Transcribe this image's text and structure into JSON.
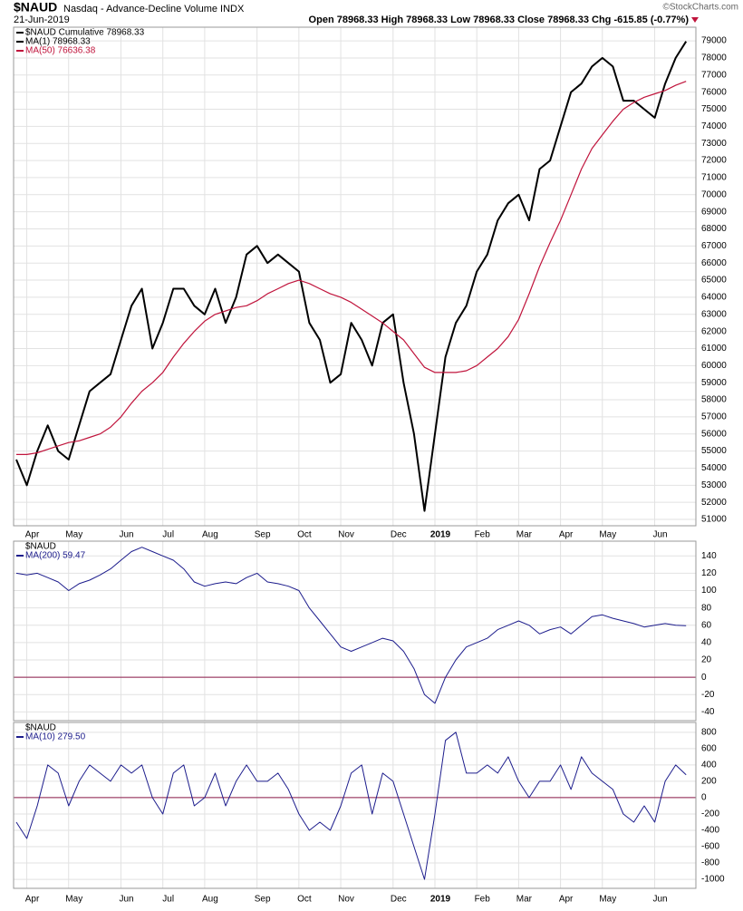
{
  "header": {
    "symbol": "$NAUD",
    "description": "Nasdaq - Advance-Decline Volume INDX",
    "date": "21-Jun-2019",
    "quote": "Open 78968.33  High 78968.33  Low 78968.33  Close 78968.33  Chg -615.85 (-0.77%)",
    "copyright": "©StockCharts.com"
  },
  "chart_data": [
    {
      "type": "line",
      "categories": [
        null,
        "Apr",
        null,
        null,
        null,
        "May",
        null,
        null,
        null,
        null,
        "Jun",
        null,
        null,
        null,
        "Jul",
        null,
        null,
        null,
        "Aug",
        null,
        null,
        null,
        null,
        "Sep",
        null,
        null,
        null,
        "Oct",
        null,
        null,
        null,
        "Nov",
        null,
        null,
        null,
        null,
        "Dec",
        null,
        null,
        null,
        "2019",
        null,
        null,
        null,
        "Feb",
        null,
        null,
        null,
        "Mar",
        null,
        null,
        null,
        "Apr",
        null,
        null,
        null,
        "May",
        null,
        null,
        null,
        null,
        "Jun",
        null,
        null,
        null
      ],
      "extra_legend": "MA(1) 78968.33",
      "series": [
        {
          "name": "$NAUD Cumulative 78968.33",
          "color": "#000000",
          "width": 2,
          "values": [
            54500,
            53000,
            55000,
            56500,
            55000,
            54500,
            56500,
            58500,
            59000,
            59500,
            61500,
            63500,
            64500,
            61000,
            62500,
            64500,
            64500,
            63500,
            63000,
            64500,
            62500,
            64000,
            66500,
            67000,
            66000,
            66500,
            66000,
            65500,
            62500,
            61500,
            59000,
            59500,
            62500,
            61500,
            60000,
            62500,
            63000,
            59000,
            56000,
            51500,
            56000,
            60500,
            62500,
            63500,
            65500,
            66500,
            68500,
            69500,
            70000,
            68500,
            71500,
            72000,
            74000,
            76000,
            76500,
            77500,
            78000,
            77500,
            75500,
            75500,
            75000,
            74500,
            76500,
            78000,
            78968.33
          ]
        },
        {
          "name": "MA(50) 76636.38",
          "color": "#c0143c",
          "width": 1.2,
          "values": [
            54800,
            54800,
            54900,
            55100,
            55300,
            55500,
            55600,
            55800,
            56000,
            56400,
            57000,
            57800,
            58500,
            59000,
            59600,
            60500,
            61300,
            62000,
            62600,
            63000,
            63200,
            63400,
            63500,
            63800,
            64200,
            64500,
            64800,
            65000,
            64800,
            64500,
            64200,
            64000,
            63700,
            63300,
            62900,
            62500,
            62000,
            61500,
            60700,
            59900,
            59600,
            59600,
            59600,
            59700,
            60000,
            60500,
            61000,
            61700,
            62700,
            64200,
            65800,
            67200,
            68500,
            70000,
            71500,
            72700,
            73500,
            74300,
            75000,
            75400,
            75700,
            75900,
            76100,
            76400,
            76636.38
          ]
        }
      ],
      "ylim": [
        50630,
        79800
      ],
      "yticks": [
        51000,
        52000,
        53000,
        54000,
        55000,
        56000,
        57000,
        58000,
        59000,
        60000,
        61000,
        62000,
        63000,
        64000,
        65000,
        66000,
        67000,
        68000,
        69000,
        70000,
        71000,
        72000,
        73000,
        74000,
        75000,
        76000,
        77000,
        78000,
        79000
      ],
      "grid": true
    },
    {
      "type": "line",
      "label": "$NAUD",
      "series": [
        {
          "name": "MA(200) 59.47",
          "color": "#1c1c8c",
          "width": 1,
          "values": [
            120,
            118,
            120,
            115,
            110,
            100,
            108,
            112,
            118,
            125,
            135,
            145,
            150,
            145,
            140,
            135,
            125,
            110,
            105,
            108,
            110,
            108,
            115,
            120,
            110,
            108,
            105,
            100,
            80,
            65,
            50,
            35,
            30,
            35,
            40,
            45,
            42,
            30,
            10,
            -20,
            -30,
            0,
            20,
            35,
            40,
            45,
            55,
            60,
            65,
            60,
            50,
            55,
            58,
            50,
            60,
            70,
            72,
            68,
            65,
            62,
            58,
            60,
            62,
            60,
            59.47
          ]
        }
      ],
      "ylim": [
        -50,
        157
      ],
      "yticks": [
        140,
        120,
        100,
        80,
        60,
        40,
        20,
        0,
        -20,
        -40
      ],
      "grid": true,
      "zero_line_color": "#8b1a4a"
    },
    {
      "type": "line",
      "label": "$NAUD",
      "series": [
        {
          "name": "MA(10) 279.50",
          "color": "#1c1c8c",
          "width": 1,
          "values": [
            -300,
            -500,
            -100,
            400,
            300,
            -100,
            200,
            400,
            300,
            200,
            400,
            300,
            400,
            0,
            -200,
            300,
            400,
            -100,
            0,
            300,
            -100,
            200,
            400,
            200,
            200,
            300,
            100,
            -200,
            -400,
            -300,
            -400,
            -100,
            300,
            400,
            -200,
            300,
            200,
            -200,
            -600,
            -1000,
            -200,
            700,
            800,
            300,
            300,
            400,
            300,
            500,
            200,
            0,
            200,
            200,
            400,
            100,
            500,
            300,
            200,
            100,
            -200,
            -300,
            -100,
            -300,
            200,
            400,
            279.5
          ]
        }
      ],
      "ylim": [
        -1110,
        920
      ],
      "yticks": [
        800,
        600,
        400,
        200,
        0,
        -200,
        -400,
        -600,
        -800,
        -1000
      ],
      "grid": true,
      "zero_line_color": "#8b1a4a"
    }
  ]
}
